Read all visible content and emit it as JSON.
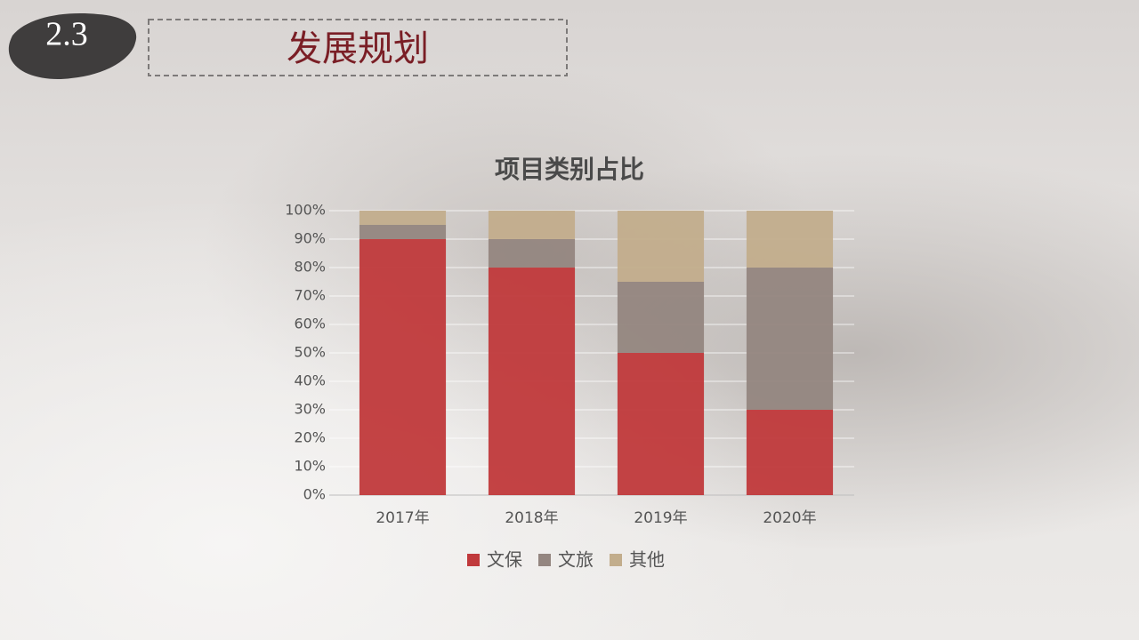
{
  "header": {
    "number": "2.3",
    "title": "发展规划"
  },
  "chart_data": {
    "type": "stacked_bar",
    "title": "项目类别占比",
    "categories": [
      "2017年",
      "2018年",
      "2019年",
      "2020年"
    ],
    "series": [
      {
        "name": "文保",
        "color": "#c0393b",
        "values": [
          90,
          80,
          50,
          30
        ]
      },
      {
        "name": "文旅",
        "color": "#948680",
        "values": [
          5,
          10,
          25,
          50
        ]
      },
      {
        "name": "其他",
        "color": "#c2ad8c",
        "values": [
          5,
          10,
          25,
          20
        ]
      }
    ],
    "ylim": [
      0,
      100
    ],
    "yticks": [
      {
        "value": 0,
        "label": "0%"
      },
      {
        "value": 10,
        "label": "10%"
      },
      {
        "value": 20,
        "label": "20%"
      },
      {
        "value": 30,
        "label": "30%"
      },
      {
        "value": 40,
        "label": "40%"
      },
      {
        "value": 50,
        "label": "50%"
      },
      {
        "value": 60,
        "label": "60%"
      },
      {
        "value": 70,
        "label": "70%"
      },
      {
        "value": 80,
        "label": "80%"
      },
      {
        "value": 90,
        "label": "90%"
      },
      {
        "value": 100,
        "label": "100%"
      }
    ],
    "grid": true
  }
}
